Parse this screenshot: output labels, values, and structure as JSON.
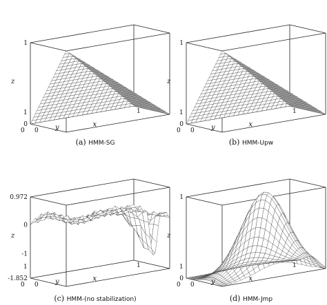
{
  "chart_data": [
    {
      "type": "surface",
      "caption_prefix": "(a)",
      "caption_method": "HMM-SG",
      "xlabel": "x",
      "ylabel": "y",
      "zlabel": "z",
      "z_ticks": [
        "0",
        "1"
      ],
      "x_ticks": [
        "0",
        "1"
      ],
      "y_ticks": [
        "1",
        "0"
      ],
      "zlim": [
        0,
        1
      ],
      "shape": "pyramid"
    },
    {
      "type": "surface",
      "caption_prefix": "(b)",
      "caption_method": "HMM-Upw",
      "xlabel": "x",
      "ylabel": "y",
      "zlabel": "z",
      "z_ticks": [
        "0",
        "1"
      ],
      "x_ticks": [
        "0",
        "1"
      ],
      "y_ticks": [
        "1",
        "0"
      ],
      "zlim": [
        0,
        1
      ],
      "shape": "pyramid"
    },
    {
      "type": "surface",
      "caption_prefix": "(c)",
      "caption_method": "HMM-(no stabilization)",
      "xlabel": "x",
      "ylabel": "y",
      "zlabel": "z",
      "z_ticks": [
        "0.972",
        "0",
        "-1",
        "-1.852"
      ],
      "x_ticks": [
        "0",
        "1"
      ],
      "y_ticks": [
        "1",
        "0"
      ],
      "zlim": [
        -1.852,
        0.972
      ],
      "shape": "oscillating"
    },
    {
      "type": "surface",
      "caption_prefix": "(d)",
      "caption_method": "HMM-Jmp",
      "xlabel": "x",
      "ylabel": "y",
      "zlabel": "z",
      "z_ticks": [
        "0",
        "1"
      ],
      "x_ticks": [
        "0",
        "1"
      ],
      "y_ticks": [
        "1",
        "0"
      ],
      "zlim": [
        0,
        1
      ],
      "shape": "bump"
    }
  ]
}
